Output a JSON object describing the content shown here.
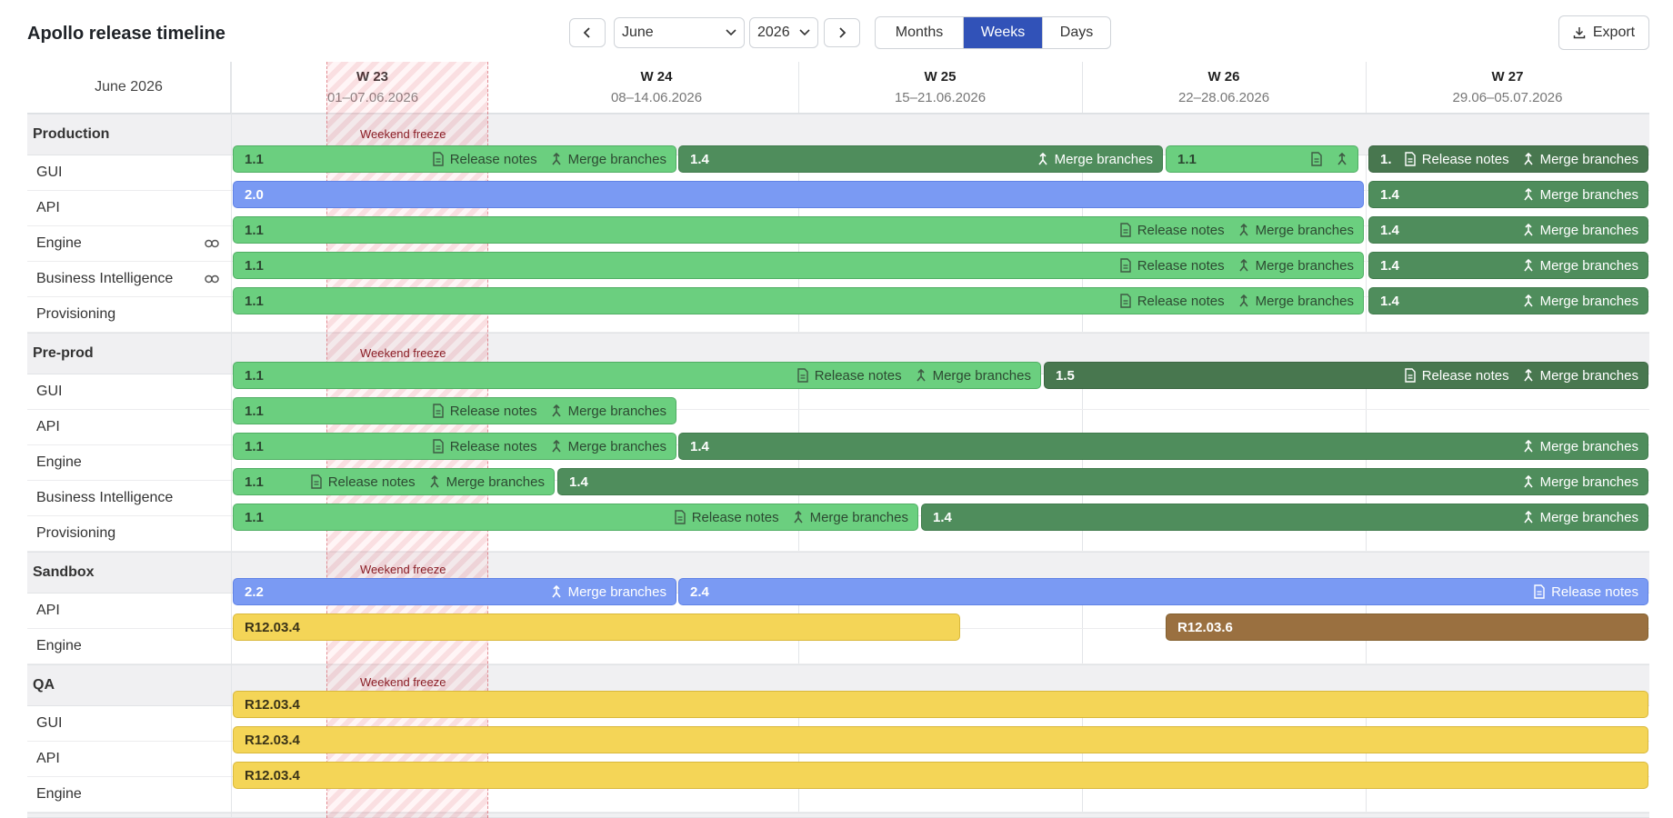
{
  "toolbar": {
    "title": "Apollo release timeline",
    "prev_icon": "chevron-left-icon",
    "next_icon": "chevron-right-icon",
    "month": "June",
    "year": "2026",
    "views": [
      "Months",
      "Weeks",
      "Days"
    ],
    "active_view": "Weeks",
    "export_label": "Export"
  },
  "header": {
    "month_label": "June 2026",
    "weeks": [
      {
        "label": "W 23",
        "range": "01–07.06.2026"
      },
      {
        "label": "W 24",
        "range": "08–14.06.2026"
      },
      {
        "label": "W 25",
        "range": "15–21.06.2026"
      },
      {
        "label": "W 26",
        "range": "22–28.06.2026"
      },
      {
        "label": "W 27",
        "range": "29.06–05.07.2026"
      }
    ]
  },
  "freeze_label": "Weekend freeze",
  "actions": {
    "release_notes": "Release notes",
    "merge_branches": "Merge branches"
  },
  "colors": {
    "green": "#6bcf7f",
    "dark_green": "#4f8d5c",
    "blue": "#7a9af3",
    "yellow": "#f4d557",
    "brown": "#9a7040",
    "active": "#3152b8",
    "freeze": "#e66e78"
  },
  "groups": [
    {
      "name": "Production",
      "rows": [
        {
          "name": "GUI",
          "link": false
        },
        {
          "name": "API",
          "link": false
        },
        {
          "name": "Engine",
          "link": true
        },
        {
          "name": "Business Intelligence",
          "link": true
        },
        {
          "name": "Provisioning",
          "link": false
        }
      ]
    },
    {
      "name": "Pre-prod",
      "rows": [
        {
          "name": "GUI",
          "link": false
        },
        {
          "name": "API",
          "link": false
        },
        {
          "name": "Engine",
          "link": false
        },
        {
          "name": "Business Intelligence",
          "link": false
        },
        {
          "name": "Provisioning",
          "link": false
        }
      ]
    },
    {
      "name": "Sandbox",
      "rows": [
        {
          "name": "API",
          "link": false
        },
        {
          "name": "Engine",
          "link": false
        }
      ]
    },
    {
      "name": "QA",
      "rows": [
        {
          "name": "GUI",
          "link": false
        },
        {
          "name": "API",
          "link": false
        },
        {
          "name": "Engine",
          "link": false
        }
      ]
    }
  ],
  "bars": {
    "production_gui": [
      {
        "version": "1.1",
        "color": "green",
        "actions": [
          "notes",
          "merge"
        ]
      },
      {
        "version": "1.4",
        "color": "dark",
        "actions": [
          "merge"
        ]
      },
      {
        "version": "1.1",
        "color": "green",
        "actions": [
          "notes-icon",
          "merge-icon"
        ]
      },
      {
        "version": "1.",
        "color": "darker",
        "actions": [
          "notes",
          "merge"
        ]
      }
    ],
    "production_api": [
      {
        "version": "2.0",
        "color": "blue",
        "actions": []
      },
      {
        "version": "1.4",
        "color": "dark",
        "actions": [
          "merge"
        ]
      }
    ],
    "production_engine": [
      {
        "version": "1.1",
        "color": "green",
        "actions": [
          "notes",
          "merge"
        ]
      },
      {
        "version": "1.4",
        "color": "dark",
        "actions": [
          "merge"
        ]
      }
    ],
    "production_bi": [
      {
        "version": "1.1",
        "color": "green",
        "actions": [
          "notes",
          "merge"
        ]
      },
      {
        "version": "1.4",
        "color": "dark",
        "actions": [
          "merge"
        ]
      }
    ],
    "production_prov": [
      {
        "version": "1.1",
        "color": "green",
        "actions": [
          "notes",
          "merge"
        ]
      },
      {
        "version": "1.4",
        "color": "dark",
        "actions": [
          "merge"
        ]
      }
    ],
    "preprod_gui": [
      {
        "version": "1.1",
        "color": "green",
        "actions": [
          "notes",
          "merge"
        ]
      },
      {
        "version": "1.5",
        "color": "darker",
        "actions": [
          "notes",
          "merge"
        ]
      }
    ],
    "preprod_api": [
      {
        "version": "1.1",
        "color": "green",
        "actions": [
          "notes",
          "merge"
        ]
      }
    ],
    "preprod_engine": [
      {
        "version": "1.1",
        "color": "green",
        "actions": [
          "notes",
          "merge"
        ]
      },
      {
        "version": "1.4",
        "color": "dark",
        "actions": [
          "merge"
        ]
      }
    ],
    "preprod_bi": [
      {
        "version": "1.1",
        "color": "green",
        "actions": [
          "notes",
          "merge"
        ]
      },
      {
        "version": "1.4",
        "color": "dark",
        "actions": [
          "merge"
        ]
      }
    ],
    "preprod_prov": [
      {
        "version": "1.1",
        "color": "green",
        "actions": [
          "notes",
          "merge"
        ]
      },
      {
        "version": "1.4",
        "color": "dark",
        "actions": [
          "merge"
        ]
      }
    ],
    "sandbox_api": [
      {
        "version": "2.2",
        "color": "blue",
        "actions": [
          "merge"
        ]
      },
      {
        "version": "2.4",
        "color": "blue",
        "actions": [
          "notes"
        ]
      }
    ],
    "sandbox_engine": [
      {
        "version": "R12.03.4",
        "color": "yellow",
        "actions": []
      },
      {
        "version": "R12.03.6",
        "color": "brown",
        "actions": []
      }
    ],
    "qa_gui": [
      {
        "version": "R12.03.4",
        "color": "yellow",
        "actions": []
      }
    ],
    "qa_api": [
      {
        "version": "R12.03.4",
        "color": "yellow",
        "actions": []
      }
    ],
    "qa_engine": [
      {
        "version": "R12.03.4",
        "color": "yellow",
        "actions": []
      }
    ]
  }
}
